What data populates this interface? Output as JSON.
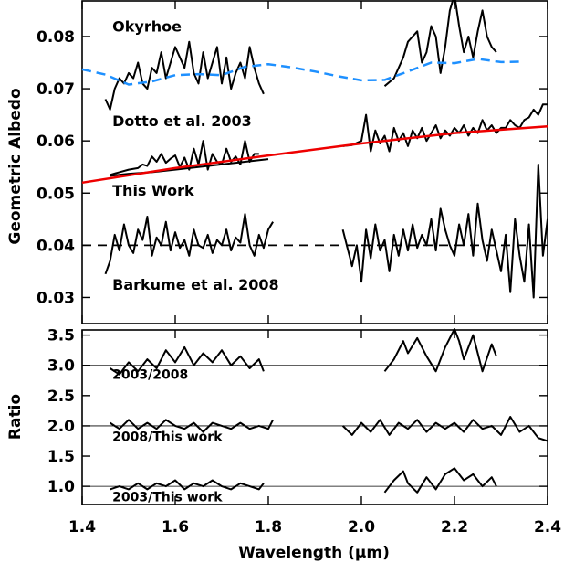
{
  "chart_data": [
    {
      "type": "line",
      "ylabel": "Geometric Albedo",
      "xlim": [
        1.4,
        2.4
      ],
      "ylim": [
        0.025,
        0.087
      ],
      "yticks": [
        0.03,
        0.04,
        0.05,
        0.06,
        0.07,
        0.08
      ],
      "ytick_labels": [
        "0.03",
        "0.04",
        "0.05",
        "0.06",
        "0.07",
        "0.08"
      ],
      "annotations": [
        {
          "text": "Okyrhoe",
          "x": 1.465,
          "y": 0.081
        },
        {
          "text": "Dotto et al. 2003",
          "x": 1.465,
          "y": 0.0628
        },
        {
          "text": "This Work",
          "x": 1.465,
          "y": 0.0495
        },
        {
          "text": "Barkume et al. 2008",
          "x": 1.465,
          "y": 0.0315
        }
      ],
      "colors": {
        "spectra": "#000000",
        "model_blue": "#1e90ff",
        "fit_red": "#ee0000",
        "reference_dash": "#000000"
      },
      "series": [
        {
          "style": "black",
          "x": [
            1.45,
            1.46,
            1.47,
            1.48,
            1.49,
            1.5,
            1.51,
            1.52,
            1.53,
            1.54,
            1.55,
            1.56,
            1.57,
            1.58,
            1.59,
            1.6,
            1.61,
            1.62,
            1.63,
            1.64,
            1.65,
            1.66,
            1.67,
            1.68,
            1.69,
            1.7,
            1.71,
            1.72,
            1.73,
            1.74,
            1.75,
            1.76,
            1.77,
            1.78,
            1.79
          ],
          "y": [
            0.068,
            0.066,
            0.07,
            0.072,
            0.071,
            0.073,
            0.072,
            0.075,
            0.071,
            0.07,
            0.074,
            0.073,
            0.077,
            0.072,
            0.075,
            0.078,
            0.076,
            0.074,
            0.079,
            0.073,
            0.071,
            0.077,
            0.072,
            0.075,
            0.078,
            0.071,
            0.076,
            0.07,
            0.073,
            0.075,
            0.072,
            0.078,
            0.074,
            0.071,
            0.069
          ]
        },
        {
          "style": "black",
          "x": [
            2.05,
            2.07,
            2.09,
            2.1,
            2.11,
            2.12,
            2.13,
            2.14,
            2.15,
            2.16,
            2.17,
            2.18,
            2.19,
            2.2,
            2.21,
            2.22,
            2.23,
            2.24,
            2.25,
            2.26,
            2.27,
            2.28,
            2.29
          ],
          "y": [
            0.0705,
            0.072,
            0.076,
            0.079,
            0.08,
            0.081,
            0.075,
            0.077,
            0.082,
            0.08,
            0.073,
            0.078,
            0.085,
            0.088,
            0.082,
            0.077,
            0.08,
            0.076,
            0.081,
            0.085,
            0.08,
            0.078,
            0.077
          ]
        },
        {
          "style": "blue_dashed",
          "x": [
            1.4,
            1.45,
            1.5,
            1.55,
            1.6,
            1.65,
            1.7,
            1.75,
            1.8,
            1.85,
            1.9,
            1.95,
            2.0,
            2.05,
            2.1,
            2.15,
            2.2,
            2.25,
            2.3,
            2.35
          ],
          "y": [
            0.0737,
            0.0727,
            0.0708,
            0.0714,
            0.0726,
            0.0728,
            0.0726,
            0.0742,
            0.0747,
            0.0741,
            0.0733,
            0.0724,
            0.0716,
            0.0717,
            0.0733,
            0.075,
            0.0749,
            0.0757,
            0.0751,
            0.0752
          ]
        },
        {
          "style": "black",
          "x": [
            1.46,
            1.48,
            1.5,
            1.52,
            1.53,
            1.54,
            1.55,
            1.56,
            1.57,
            1.58,
            1.59,
            1.6,
            1.61,
            1.62,
            1.63,
            1.64,
            1.65,
            1.66,
            1.67,
            1.68,
            1.69,
            1.7,
            1.71,
            1.72,
            1.73,
            1.74,
            1.75,
            1.76,
            1.77,
            1.78
          ],
          "y": [
            0.0535,
            0.054,
            0.0545,
            0.0548,
            0.0555,
            0.0552,
            0.057,
            0.056,
            0.0575,
            0.0558,
            0.0566,
            0.0572,
            0.055,
            0.0568,
            0.0545,
            0.0585,
            0.0555,
            0.06,
            0.0545,
            0.0575,
            0.056,
            0.0555,
            0.0585,
            0.056,
            0.057,
            0.0555,
            0.06,
            0.056,
            0.0575,
            0.0575
          ]
        },
        {
          "style": "black",
          "x": [
            1.46,
            1.5,
            1.55,
            1.6,
            1.65,
            1.7,
            1.75,
            1.8
          ],
          "y": [
            0.0533,
            0.0537,
            0.054,
            0.0545,
            0.055,
            0.0555,
            0.056,
            0.0565
          ]
        },
        {
          "style": "black",
          "x": [
            1.96,
            1.98,
            2.0,
            2.01,
            2.02,
            2.03,
            2.04,
            2.05,
            2.06,
            2.07,
            2.08,
            2.09,
            2.1,
            2.11,
            2.12,
            2.13,
            2.14,
            2.15,
            2.16,
            2.17,
            2.18,
            2.19,
            2.2,
            2.21,
            2.22,
            2.23,
            2.24,
            2.25,
            2.26,
            2.27,
            2.28,
            2.29,
            2.3,
            2.31,
            2.32,
            2.33,
            2.34,
            2.35,
            2.36,
            2.37,
            2.38,
            2.39,
            2.4
          ],
          "y": [
            0.059,
            0.0592,
            0.06,
            0.065,
            0.058,
            0.062,
            0.0595,
            0.061,
            0.058,
            0.0625,
            0.06,
            0.0615,
            0.059,
            0.062,
            0.0605,
            0.0625,
            0.06,
            0.0615,
            0.063,
            0.0605,
            0.062,
            0.061,
            0.0625,
            0.0615,
            0.063,
            0.061,
            0.0625,
            0.0615,
            0.064,
            0.062,
            0.063,
            0.0615,
            0.0625,
            0.0625,
            0.064,
            0.063,
            0.0625,
            0.064,
            0.0645,
            0.066,
            0.065,
            0.067,
            0.067
          ]
        },
        {
          "style": "red_fit",
          "x": [
            1.4,
            1.6,
            1.8,
            2.0,
            2.2,
            2.4
          ],
          "y": [
            0.052,
            0.0548,
            0.0572,
            0.0595,
            0.0615,
            0.0628
          ]
        },
        {
          "style": "black",
          "x": [
            1.45,
            1.46,
            1.47,
            1.48,
            1.49,
            1.5,
            1.51,
            1.52,
            1.53,
            1.54,
            1.55,
            1.56,
            1.57,
            1.58,
            1.59,
            1.6,
            1.61,
            1.62,
            1.63,
            1.64,
            1.65,
            1.66,
            1.67,
            1.68,
            1.69,
            1.7,
            1.71,
            1.72,
            1.73,
            1.74,
            1.75,
            1.76,
            1.77,
            1.78,
            1.79,
            1.8,
            1.81
          ],
          "y": [
            0.0345,
            0.037,
            0.042,
            0.039,
            0.044,
            0.04,
            0.0385,
            0.043,
            0.041,
            0.0455,
            0.038,
            0.0415,
            0.04,
            0.0445,
            0.039,
            0.0425,
            0.0395,
            0.041,
            0.038,
            0.043,
            0.04,
            0.0395,
            0.042,
            0.0385,
            0.041,
            0.04,
            0.043,
            0.039,
            0.0415,
            0.0405,
            0.046,
            0.04,
            0.038,
            0.042,
            0.0395,
            0.043,
            0.0445
          ]
        },
        {
          "style": "black",
          "x": [
            1.96,
            1.97,
            1.98,
            1.99,
            2.0,
            2.01,
            2.02,
            2.03,
            2.04,
            2.05,
            2.06,
            2.07,
            2.08,
            2.09,
            2.1,
            2.11,
            2.12,
            2.13,
            2.14,
            2.15,
            2.16,
            2.17,
            2.18,
            2.19,
            2.2,
            2.21,
            2.22,
            2.23,
            2.24,
            2.25,
            2.26,
            2.27,
            2.28,
            2.29,
            2.3,
            2.31,
            2.32,
            2.33,
            2.34,
            2.35,
            2.36,
            2.37,
            2.38,
            2.39,
            2.4
          ],
          "y": [
            0.043,
            0.0395,
            0.036,
            0.04,
            0.033,
            0.043,
            0.0375,
            0.044,
            0.039,
            0.041,
            0.035,
            0.042,
            0.038,
            0.043,
            0.039,
            0.044,
            0.0395,
            0.042,
            0.04,
            0.045,
            0.039,
            0.047,
            0.043,
            0.04,
            0.038,
            0.044,
            0.04,
            0.046,
            0.038,
            0.048,
            0.041,
            0.037,
            0.043,
            0.039,
            0.035,
            0.042,
            0.031,
            0.045,
            0.038,
            0.033,
            0.044,
            0.03,
            0.0555,
            0.038,
            0.045
          ]
        },
        {
          "style": "reference_dash",
          "x": [
            1.4,
            2.4
          ],
          "y": [
            0.04,
            0.04
          ]
        }
      ]
    },
    {
      "type": "line",
      "xlabel": "Wavelength (μm)",
      "ylabel": "Ratio",
      "xlim": [
        1.4,
        2.4
      ],
      "ylim": [
        0.7,
        3.6
      ],
      "xticks": [
        1.4,
        1.6,
        1.8,
        2.0,
        2.2,
        2.4
      ],
      "xtick_labels": [
        "1.4",
        "1.6",
        "1.8",
        "2.0",
        "2.2",
        "2.4"
      ],
      "yticks": [
        1.0,
        1.5,
        2.0,
        2.5,
        3.0,
        3.5
      ],
      "ytick_labels": [
        "1.0",
        "1.5",
        "2.0",
        "2.5",
        "3.0",
        "3.5"
      ],
      "reference_lines": [
        1.0,
        2.0,
        3.0
      ],
      "annotations": [
        {
          "text": "2003/2008",
          "x": 1.465,
          "y": 2.78
        },
        {
          "text": "2008/This work",
          "x": 1.465,
          "y": 1.75
        },
        {
          "text": "2003/This work",
          "x": 1.465,
          "y": 0.75
        }
      ],
      "series": [
        {
          "style": "black",
          "x": [
            1.46,
            1.48,
            1.5,
            1.52,
            1.54,
            1.56,
            1.58,
            1.6,
            1.62,
            1.64,
            1.66,
            1.68,
            1.7,
            1.72,
            1.74,
            1.76,
            1.78,
            1.79
          ],
          "y": [
            2.95,
            2.85,
            3.05,
            2.9,
            3.1,
            2.95,
            3.25,
            3.05,
            3.3,
            3.0,
            3.2,
            3.05,
            3.25,
            3.0,
            3.15,
            2.95,
            3.1,
            2.9
          ]
        },
        {
          "style": "black",
          "x": [
            2.05,
            2.07,
            2.09,
            2.1,
            2.12,
            2.14,
            2.16,
            2.18,
            2.2,
            2.21,
            2.22,
            2.24,
            2.26,
            2.28,
            2.29
          ],
          "y": [
            2.9,
            3.1,
            3.4,
            3.2,
            3.45,
            3.15,
            2.9,
            3.3,
            3.6,
            3.4,
            3.1,
            3.5,
            2.9,
            3.35,
            3.15
          ]
        },
        {
          "style": "black",
          "x": [
            1.46,
            1.48,
            1.5,
            1.52,
            1.54,
            1.56,
            1.58,
            1.6,
            1.62,
            1.64,
            1.66,
            1.68,
            1.7,
            1.72,
            1.74,
            1.76,
            1.78,
            1.8,
            1.81
          ],
          "y": [
            2.05,
            1.95,
            2.1,
            1.95,
            2.05,
            1.95,
            2.1,
            2.0,
            1.95,
            2.05,
            1.9,
            2.05,
            2.0,
            1.95,
            2.05,
            1.95,
            2.0,
            1.95,
            2.1
          ]
        },
        {
          "style": "black",
          "x": [
            1.96,
            1.98,
            2.0,
            2.02,
            2.04,
            2.06,
            2.08,
            2.1,
            2.12,
            2.14,
            2.16,
            2.18,
            2.2,
            2.22,
            2.24,
            2.26,
            2.28,
            2.3,
            2.32,
            2.34,
            2.36,
            2.38,
            2.4
          ],
          "y": [
            2.0,
            1.85,
            2.05,
            1.9,
            2.1,
            1.85,
            2.05,
            1.95,
            2.1,
            1.9,
            2.05,
            1.95,
            2.05,
            1.9,
            2.1,
            1.95,
            2.0,
            1.85,
            2.15,
            1.9,
            2.0,
            1.8,
            1.75
          ]
        },
        {
          "style": "black",
          "x": [
            1.46,
            1.48,
            1.5,
            1.52,
            1.54,
            1.56,
            1.58,
            1.6,
            1.62,
            1.64,
            1.66,
            1.68,
            1.7,
            1.72,
            1.74,
            1.76,
            1.78,
            1.79
          ],
          "y": [
            0.95,
            1.0,
            0.95,
            1.05,
            0.95,
            1.05,
            1.0,
            1.1,
            0.95,
            1.05,
            1.0,
            1.1,
            1.0,
            0.95,
            1.05,
            1.0,
            0.95,
            1.05
          ]
        },
        {
          "style": "black",
          "x": [
            2.05,
            2.07,
            2.09,
            2.1,
            2.12,
            2.14,
            2.16,
            2.18,
            2.2,
            2.22,
            2.24,
            2.26,
            2.28,
            2.29
          ],
          "y": [
            0.9,
            1.1,
            1.25,
            1.05,
            0.9,
            1.15,
            0.95,
            1.2,
            1.3,
            1.1,
            1.2,
            1.0,
            1.15,
            1.0
          ]
        }
      ]
    }
  ]
}
